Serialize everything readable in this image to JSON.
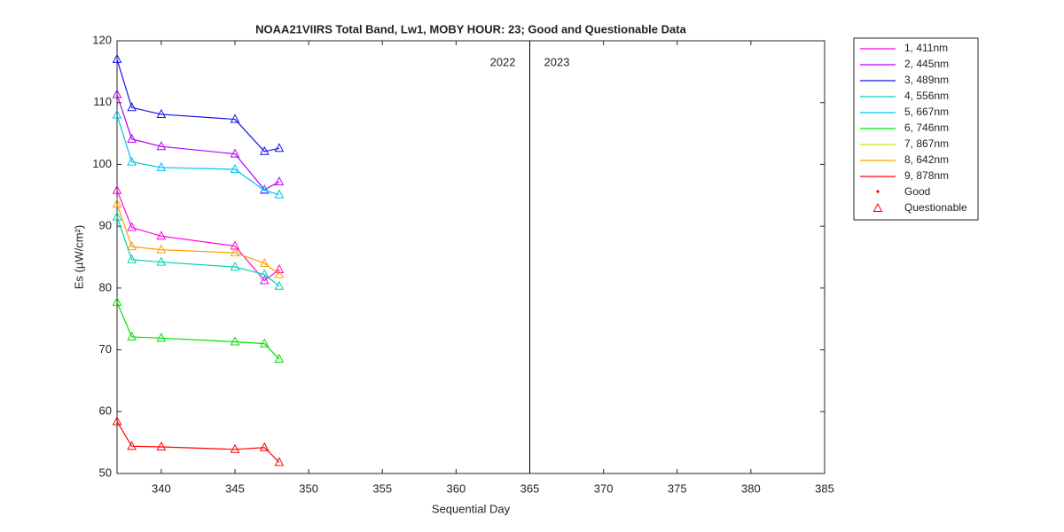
{
  "chart_data": {
    "type": "line",
    "title": "NOAA21VIIRS Total Band,  Lw1, MOBY HOUR: 23;  Good and Questionable Data",
    "x_label": "Sequential Day",
    "y_label": "Es (µW/cm²)",
    "x": [
      337,
      338,
      340,
      345,
      347,
      348
    ],
    "xlim": [
      337,
      385
    ],
    "xticks": [
      340,
      345,
      350,
      355,
      360,
      365,
      370,
      375,
      380,
      385
    ],
    "ylim": [
      50,
      120
    ],
    "yticks": [
      50,
      60,
      70,
      80,
      90,
      100,
      110,
      120
    ],
    "divider_x": 365,
    "annotations": [
      "2022",
      "2023"
    ],
    "series": [
      {
        "name": "1, 411nm",
        "color": "#ff00e0",
        "values": [
          95.8,
          89.8,
          88.4,
          86.8,
          81.2,
          83.0
        ]
      },
      {
        "name": "2, 445nm",
        "color": "#b000ff",
        "values": [
          111.3,
          104.1,
          102.9,
          101.7,
          95.9,
          97.2
        ]
      },
      {
        "name": "3, 489nm",
        "color": "#1414e6",
        "values": [
          117.0,
          109.2,
          108.1,
          107.3,
          102.1,
          102.6
        ]
      },
      {
        "name": "4, 556nm",
        "color": "#00d2b4",
        "values": [
          91.5,
          84.6,
          84.2,
          83.4,
          82.2,
          80.3
        ]
      },
      {
        "name": "5, 667nm",
        "color": "#00c0f0",
        "values": [
          108.0,
          100.4,
          99.5,
          99.2,
          95.8,
          95.1
        ]
      },
      {
        "name": "6, 746nm",
        "color": "#00e000",
        "values": [
          77.7,
          72.1,
          71.9,
          71.3,
          71.0,
          68.5
        ]
      },
      {
        "name": "7, 867nm",
        "color": "#b4f000",
        "values": [
          null,
          null,
          null,
          null,
          null,
          null
        ]
      },
      {
        "name": "8, 642nm",
        "color": "#ffa000",
        "values": [
          93.6,
          86.7,
          86.2,
          85.7,
          84.0,
          82.2
        ]
      },
      {
        "name": "9, 878nm",
        "color": "#ff0000",
        "values": [
          58.4,
          54.4,
          54.3,
          53.9,
          54.2,
          51.8
        ]
      }
    ],
    "markers": [
      {
        "name": "Good",
        "symbol": "dot",
        "color": "#ff0000"
      },
      {
        "name": "Questionable",
        "symbol": "triangle",
        "color": "#ff0000"
      }
    ]
  }
}
